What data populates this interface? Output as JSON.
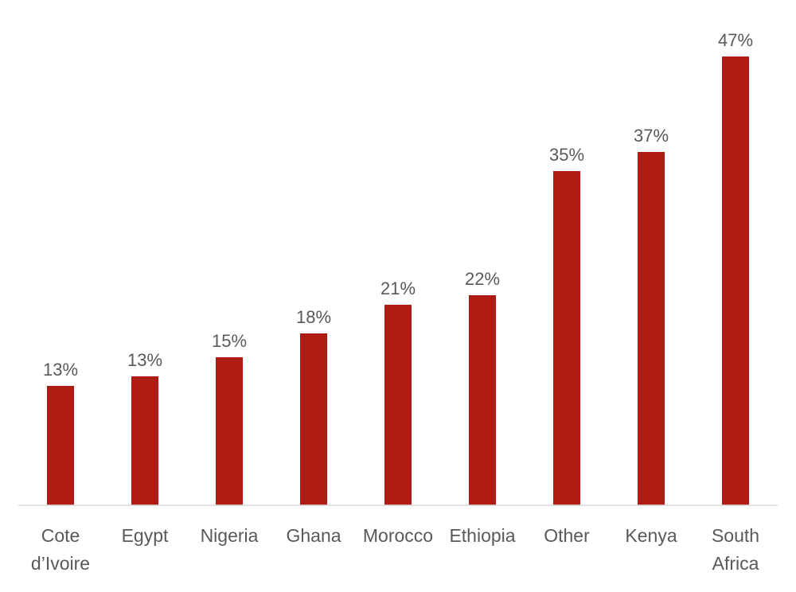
{
  "chart_data": {
    "type": "bar",
    "title": "",
    "xlabel": "",
    "ylabel": "",
    "categories": [
      [
        "Cote",
        "d’Ivoire"
      ],
      [
        "Egypt"
      ],
      [
        "Nigeria"
      ],
      [
        "Ghana"
      ],
      [
        "Morocco"
      ],
      [
        "Ethiopia"
      ],
      [
        "Other"
      ],
      [
        "Kenya"
      ],
      [
        "South",
        "Africa"
      ]
    ],
    "values": [
      0.125,
      0.135,
      0.155,
      0.18,
      0.21,
      0.22,
      0.35,
      0.37,
      0.47
    ],
    "data_labels": [
      "13%",
      "13%",
      "15%",
      "18%",
      "21%",
      "22%",
      "35%",
      "37%",
      "47%"
    ],
    "ylim": [
      0,
      0.5
    ],
    "grid": false,
    "legend": "none",
    "colors": {
      "bar": "#B01C13",
      "axis": "#D9D9D9",
      "label_text": "#595959"
    }
  }
}
